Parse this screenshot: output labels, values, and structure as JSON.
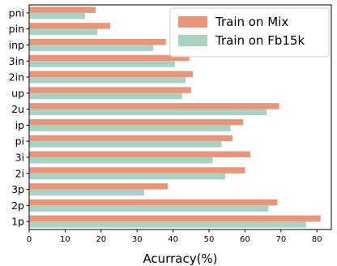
{
  "chart_data": {
    "type": "bar",
    "orientation": "horizontal",
    "categories": [
      "pni",
      "pin",
      "inp",
      "3in",
      "2in",
      "up",
      "2u",
      "ip",
      "pi",
      "3i",
      "2i",
      "3p",
      "2p",
      "1p"
    ],
    "series": [
      {
        "name": "Train on Mix",
        "color": "#e8967a",
        "values": [
          18.5,
          22.5,
          38,
          44.5,
          45.5,
          45,
          69.5,
          59.5,
          56.5,
          61.5,
          60,
          38.5,
          69,
          81
        ]
      },
      {
        "name": "Train on Fb15k",
        "color": "#a9d2c3",
        "values": [
          15.5,
          19,
          34.5,
          40.5,
          43.5,
          42.5,
          66,
          56,
          53.5,
          51,
          54.5,
          32,
          66.5,
          77
        ]
      }
    ],
    "xlabel": "Acurracy(%)",
    "ylabel": "",
    "xlim": [
      0,
      84
    ],
    "xticks": [
      0,
      10,
      20,
      30,
      40,
      50,
      60,
      70,
      80
    ],
    "grid": false,
    "legend_position": "top-right"
  }
}
